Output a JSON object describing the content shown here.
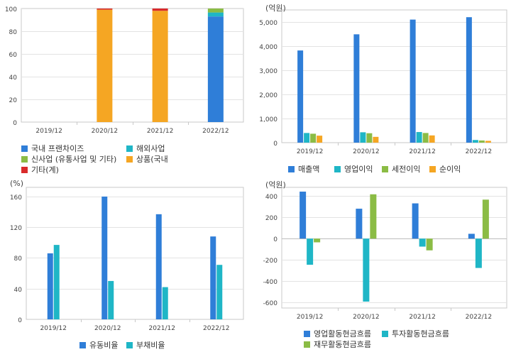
{
  "chart_data": [
    {
      "type": "bar",
      "stacked": true,
      "categories": [
        "2019/12",
        "2020/12",
        "2021/12",
        "2022/12"
      ],
      "ylim": [
        0,
        100
      ],
      "yticks": [
        0,
        20,
        40,
        60,
        80,
        100
      ],
      "series": [
        {
          "name": "국내 프랜차이즈",
          "color": "#2f7ed8",
          "values": [
            0,
            0,
            0,
            93
          ]
        },
        {
          "name": "해외사업",
          "color": "#1fb6c6",
          "values": [
            0,
            0,
            0,
            3.5
          ]
        },
        {
          "name": "신사업 (유통사업 및 기타)",
          "color": "#8bbc45",
          "values": [
            0,
            0,
            0,
            3.5
          ]
        },
        {
          "name": "상품(국내",
          "color": "#f5a623",
          "values": [
            0,
            99,
            98,
            0
          ]
        },
        {
          "name": "기타(계)",
          "color": "#d92b2b",
          "values": [
            0,
            1,
            2,
            0
          ]
        }
      ]
    },
    {
      "type": "bar",
      "unit": "(억원)",
      "categories": [
        "2019/12",
        "2020/12",
        "2021/12",
        "2022/12"
      ],
      "ylim": [
        0,
        5500
      ],
      "yticks": [
        0,
        1000,
        2000,
        3000,
        4000,
        5000
      ],
      "ytick_labels": [
        "0",
        "1,000",
        "2,000",
        "3,000",
        "4,000",
        "5,000"
      ],
      "series": [
        {
          "name": "매출액",
          "color": "#2f7ed8",
          "values": [
            3820,
            4490,
            5100,
            5200
          ]
        },
        {
          "name": "영업이익",
          "color": "#1fb6c6",
          "values": [
            400,
            430,
            440,
            110
          ]
        },
        {
          "name": "세전이익",
          "color": "#8bbc45",
          "values": [
            370,
            390,
            400,
            90
          ]
        },
        {
          "name": "순이익",
          "color": "#f5a623",
          "values": [
            290,
            240,
            300,
            75
          ]
        }
      ]
    },
    {
      "type": "bar",
      "unit": "(%)",
      "categories": [
        "2019/12",
        "2020/12",
        "2021/12",
        "2022/12"
      ],
      "ylim": [
        0,
        172
      ],
      "yticks": [
        0,
        40,
        80,
        120,
        160
      ],
      "series": [
        {
          "name": "유동비율",
          "color": "#2f7ed8",
          "values": [
            86,
            160,
            137,
            108
          ]
        },
        {
          "name": "부채비율",
          "color": "#1fb6c6",
          "values": [
            97,
            50,
            42,
            71
          ]
        }
      ]
    },
    {
      "type": "bar",
      "unit": "(억원)",
      "categories": [
        "2019/12",
        "2020/12",
        "2021/12",
        "2022/12"
      ],
      "ylim": [
        -650,
        480
      ],
      "yticks": [
        -600,
        -400,
        -200,
        0,
        200,
        400
      ],
      "series": [
        {
          "name": "영업활동현금흐름",
          "color": "#2f7ed8",
          "values": [
            440,
            280,
            330,
            45
          ]
        },
        {
          "name": "투자활동현금흐름",
          "color": "#1fb6c6",
          "values": [
            -245,
            -590,
            -75,
            -275
          ]
        },
        {
          "name": "재무활동현금흐름",
          "color": "#8bbc45",
          "values": [
            -35,
            415,
            -110,
            365
          ]
        }
      ]
    }
  ]
}
